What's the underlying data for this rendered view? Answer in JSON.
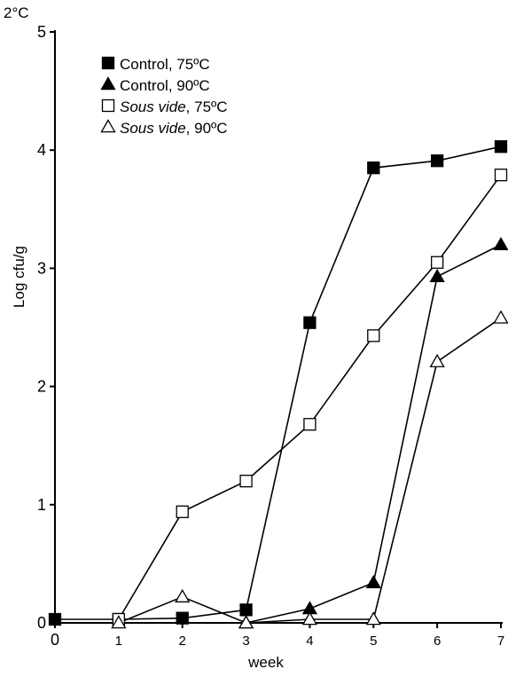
{
  "chart_data": {
    "type": "line",
    "corner_label": "2°C",
    "xlabel": "week",
    "ylabel": "Log cfu/g",
    "xlim": [
      0,
      7
    ],
    "ylim": [
      0,
      5
    ],
    "x_ticks": [
      0,
      1,
      2,
      3,
      4,
      5,
      6,
      7
    ],
    "y_ticks": [
      0,
      1,
      2,
      3,
      4,
      5
    ],
    "grid": false,
    "legend_position": "top-left",
    "series": [
      {
        "name_parts": [
          "Control",
          ", 75ºC"
        ],
        "name_italic": false,
        "marker": "filled-square",
        "x": [
          0,
          1,
          2,
          3,
          4,
          5,
          6,
          7
        ],
        "y": [
          0.03,
          0.03,
          0.04,
          0.11,
          2.54,
          3.85,
          3.91,
          4.03
        ]
      },
      {
        "name_parts": [
          "Control",
          ", 90ºC"
        ],
        "name_italic": false,
        "marker": "filled-triangle",
        "x": [
          3,
          4,
          5,
          6,
          7
        ],
        "y": [
          0.0,
          0.12,
          0.34,
          2.93,
          3.2
        ]
      },
      {
        "name_parts": [
          "Sous vide",
          ", 75ºC"
        ],
        "name_italic": true,
        "marker": "open-square",
        "x": [
          1,
          2,
          3,
          4,
          5,
          6,
          7
        ],
        "y": [
          0.03,
          0.94,
          1.2,
          1.68,
          2.43,
          3.05,
          3.79
        ]
      },
      {
        "name_parts": [
          "Sous vide",
          ", 90ºC"
        ],
        "name_italic": true,
        "marker": "open-triangle",
        "x": [
          1,
          2,
          3,
          4,
          5,
          6,
          7
        ],
        "y": [
          0.0,
          0.22,
          0.0,
          0.03,
          0.03,
          2.21,
          2.58
        ]
      }
    ]
  }
}
